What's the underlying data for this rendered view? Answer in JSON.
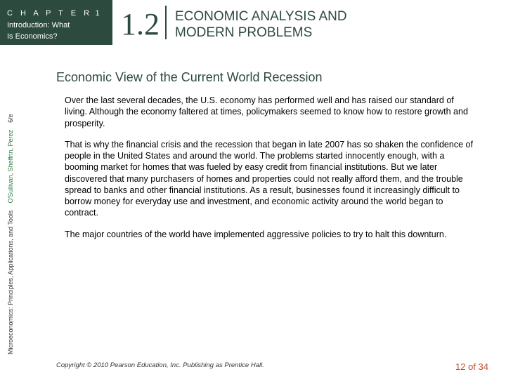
{
  "header": {
    "chapter_label": "C H A P T E R",
    "chapter_num": "1",
    "chapter_subtitle_line1": "Introduction: What",
    "chapter_subtitle_line2": "Is Economics?",
    "section_num": "1.2",
    "section_title_line1": "ECONOMIC ANALYSIS AND",
    "section_title_line2": "MODERN PROBLEMS"
  },
  "spine": {
    "book_title": "Microeconomics: Principles, Applications, and Tools",
    "authors": "O'Sullivan, Sheffrin, Perez",
    "edition": "6/e"
  },
  "content": {
    "subhead": "Economic View of the Current World Recession",
    "para1": "Over the last several decades, the U.S. economy has performed well and has raised our standard of living. Although the economy faltered at times, policymakers seemed to know how to restore growth and prosperity.",
    "para2": "That is why the financial crisis and the recession that began in late 2007 has so shaken the confidence of people in the United States and around the world. The problems started innocently enough, with a booming market for homes that was fueled by easy credit from financial institutions. But we later discovered that many purchasers of homes and properties could not really afford them, and the trouble spread to banks and other financial institutions. As a result, businesses found it increasingly difficult to borrow money for everyday use and investment, and economic activity around the world began to contract.",
    "para3": "The major countries of the world have implemented aggressive policies to try to halt this downturn."
  },
  "footer": {
    "copyright": "Copyright © 2010 Pearson Education, Inc. Publishing as Prentice Hall.",
    "page": "12 of 34"
  },
  "colors": {
    "dark_green": "#2c4a3d",
    "spine_green": "#2c7a3d",
    "page_orange": "#c24d2c",
    "background": "#ffffff"
  }
}
